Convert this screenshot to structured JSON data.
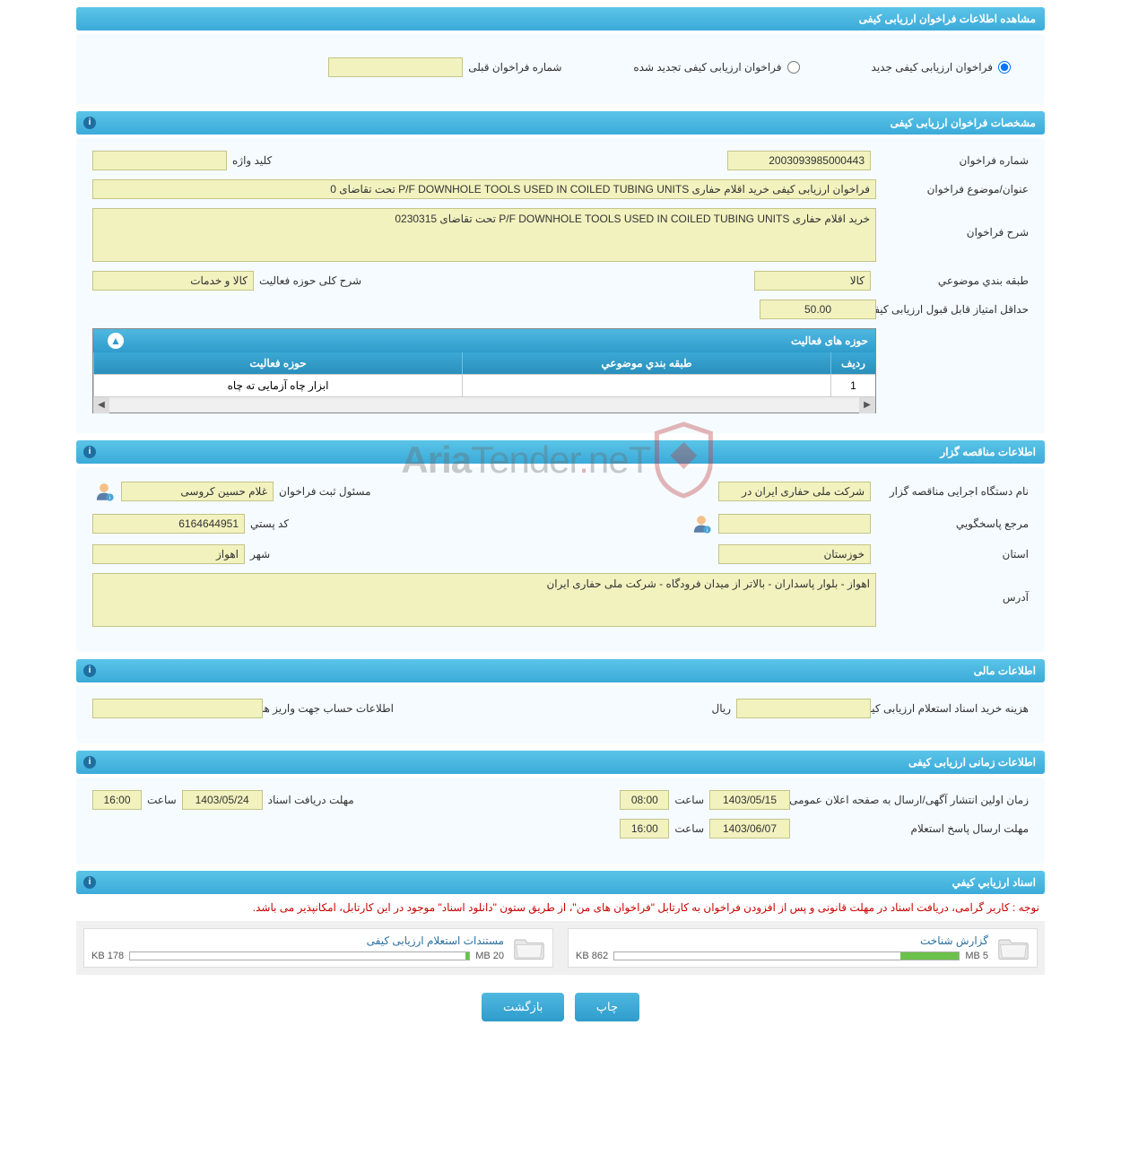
{
  "header_main": "مشاهده اطلاعات فراخوان ارزیابی کیفی",
  "radios": {
    "new_label": "فراخوان ارزیابی کیفی جدید",
    "renewed_label": "فراخوان ارزیابی کیفی تجدید شده",
    "prev_num_label": "شماره فراخوان قبلی",
    "prev_num_value": ""
  },
  "section_spec": "مشخصات فراخوان ارزیابی کیفی",
  "spec": {
    "call_number_label": "شماره فراخوان",
    "call_number_value": "2003093985000443",
    "keyword_label": "کلید واژه",
    "keyword_value": "",
    "subject_label": "عنوان/موضوع فراخوان",
    "subject_value": "فراخوان ارزیابی کیفی خرید اقلام حفاری P/F DOWNHOLE TOOLS USED IN COILED TUBING UNITS تحت تقاضای 0",
    "desc_label": "شرح فراخوان",
    "desc_value": "خرید اقلام حفاری P/F DOWNHOLE TOOLS USED IN COILED TUBING UNITS تحت تقاضای 0230315",
    "category_label": "طبقه بندي موضوعي",
    "category_value": "کالا",
    "scope_label": "شرح کلی حوزه فعالیت",
    "scope_value": "کالا و خدمات",
    "min_score_label": "حداقل امتیاز قابل قبول ارزیابی کیفی",
    "min_score_value": "50.00",
    "activity_header": "حوزه های فعالیت",
    "col_row": "ردیف",
    "col_cat": "طبقه بندي موضوعي",
    "col_act": "حوزه فعالیت",
    "row1_idx": "1",
    "row1_cat": "",
    "row1_act": "ابزار چاه آزمایی ته چاه"
  },
  "section_org": "اطلاعات مناقصه گزار",
  "org": {
    "agency_label": "نام دستگاه اجرایی مناقصه گزار",
    "agency_value": "شرکت ملی حفاری ایران در",
    "registrar_label": "مسئول ثبت فراخوان",
    "registrar_value": "غلام حسین  کروسی",
    "contact_label": "مرجع پاسخگويي",
    "contact_value": "",
    "postal_label": "کد پستي",
    "postal_value": "6164644951",
    "province_label": "استان",
    "province_value": "خوزستان",
    "city_label": "شهر",
    "city_value": "اهواز",
    "address_label": "آدرس",
    "address_value": "اهواز - بلوار پاسداران - بالاتر از میدان فرودگاه - شرکت ملی حفاری ایران"
  },
  "section_fin": "اطلاعات مالی",
  "fin": {
    "cost_label": "هزینه خرید اسناد استعلام ارزیابی کیفی",
    "cost_value": "",
    "rial": "ريال",
    "account_label": "اطلاعات حساب جهت واریز هزینه خرید اسناد",
    "account_value": ""
  },
  "section_time": "اطلاعات زمانی ارزیابی کیفی",
  "time": {
    "publish_label": "زمان اولین انتشار آگهی/ارسال به صفحه اعلان عمومی",
    "publish_date": "1403/05/15",
    "publish_time_label": "ساعت",
    "publish_time": "08:00",
    "receive_label": "مهلت دریافت اسناد",
    "receive_date": "1403/05/24",
    "receive_time_label": "ساعت",
    "receive_time": "16:00",
    "response_label": "مهلت ارسال پاسخ استعلام",
    "response_date": "1403/06/07",
    "response_time_label": "ساعت",
    "response_time": "16:00"
  },
  "section_docs": "اسناد ارزيابي كيفي",
  "docs": {
    "note": "نوجه : کاربر گرامی، دریافت اسناد در مهلت قانونی و پس از افزودن فراخوان به کارتابل \"فراخوان های من\"، از طریق ستون \"دانلود اسناد\" موجود در این کارتابل، امکانپذیر می باشد.",
    "doc1_title": "گزارش شناخت",
    "doc1_size": "862 KB",
    "doc1_max": "5 MB",
    "doc1_pct": 17,
    "doc2_title": "مستندات استعلام ارزیابی کیفی",
    "doc2_size": "178 KB",
    "doc2_max": "20 MB",
    "doc2_pct": 1
  },
  "buttons": {
    "print": "چاپ",
    "back": "بازگشت"
  },
  "colors": {
    "header_grad_top": "#5bc4e8",
    "header_grad_bot": "#3babd9",
    "yellow_bg": "#f2f2bf",
    "yellow_border": "#c4c48a",
    "body_bg": "#f5fbfe"
  }
}
